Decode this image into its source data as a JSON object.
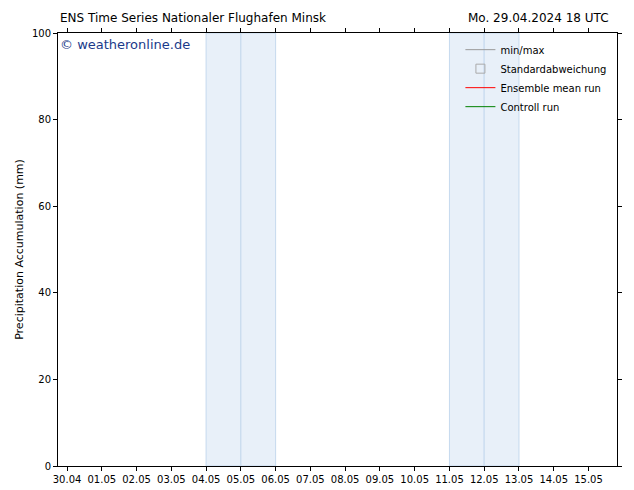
{
  "chart_data": {
    "type": "line",
    "title": "ENS Time Series Nationaler Flughafen Minsk",
    "subtitle": "Mo. 29.04.2024 18 UTC",
    "annotations": [
      "© weatheronline.de"
    ],
    "y_label": "Precipitation Accumulation (mm)",
    "categories": [
      "30.04",
      "01.05",
      "02.05",
      "03.05",
      "04.05",
      "05.05",
      "06.05",
      "07.05",
      "08.05",
      "09.05",
      "10.05",
      "11.05",
      "12.05",
      "13.05",
      "14.05",
      "15.05"
    ],
    "xlim": [
      -0.26,
      15.82
    ],
    "shaded_days": [
      "04.05",
      "05.05",
      "11.05",
      "12.05"
    ],
    "series": [
      {
        "name": "min/max",
        "color": "#999999",
        "line_style": "solid",
        "values": [
          null,
          null,
          null,
          null,
          null,
          null,
          null,
          null,
          null,
          null,
          null,
          null,
          null,
          null,
          null,
          null
        ]
      },
      {
        "name": "Standardabweichung",
        "color": "#aaaaaa",
        "marker": "square-open",
        "values": [
          null,
          null,
          null,
          null,
          null,
          null,
          null,
          null,
          null,
          null,
          null,
          null,
          null,
          null,
          null,
          null
        ]
      },
      {
        "name": "Ensemble mean run",
        "color": "#ff0000",
        "line_style": "solid",
        "values": [
          null,
          null,
          null,
          null,
          null,
          null,
          null,
          null,
          null,
          null,
          null,
          null,
          null,
          null,
          null,
          null
        ]
      },
      {
        "name": "Controll run",
        "color": "#008000",
        "line_style": "solid",
        "values": [
          null,
          null,
          null,
          null,
          null,
          null,
          null,
          null,
          null,
          null,
          null,
          null,
          null,
          null,
          null,
          null
        ]
      }
    ],
    "ylim": [
      0,
      100
    ],
    "yticks": [
      0,
      20,
      40,
      60,
      80,
      100
    ],
    "grid": false,
    "legend": "top right"
  }
}
